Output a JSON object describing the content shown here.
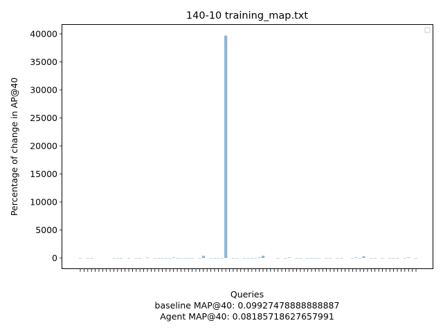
{
  "chart_data": {
    "type": "bar",
    "title": "140-10 training_map.txt",
    "xlabel": "Queries",
    "ylabel": "Percentage of change in AP@40",
    "footer": [
      "baseline MAP@40: 0.09927478888888887",
      "Agent MAP@40: 0.08185718627657991"
    ],
    "ylim": [
      -2000,
      41600
    ],
    "yticks": [
      0,
      5000,
      10000,
      15000,
      20000,
      25000,
      30000,
      35000,
      40000
    ],
    "ytick_labels": [
      "0",
      "5000",
      "10000",
      "15000",
      "20000",
      "25000",
      "30000",
      "35000",
      "40000"
    ],
    "grid": false,
    "legend": "top-right (empty)",
    "bar_color": "#8ab8dc",
    "values": [
      -60,
      0,
      -40,
      -30,
      0,
      0,
      0,
      0,
      0,
      -30,
      -50,
      -40,
      0,
      -60,
      0,
      -40,
      -30,
      0,
      60,
      0,
      -30,
      -40,
      -50,
      -40,
      -30,
      90,
      -20,
      -30,
      -40,
      -50,
      -30,
      0,
      -60,
      400,
      0,
      -40,
      -40,
      -30,
      -30,
      39700,
      0,
      -50,
      -40,
      0,
      -40,
      -50,
      -60,
      -20,
      100,
      400,
      0,
      0,
      0,
      -30,
      0,
      -40,
      100,
      0,
      -50,
      -40,
      0,
      -40,
      -60,
      -50,
      -30,
      0,
      -50,
      -60,
      0,
      -40,
      -40,
      0,
      0,
      -30,
      100,
      -20,
      300,
      0,
      -30,
      -40,
      0,
      -30,
      0,
      -50,
      -40,
      -40,
      0,
      -50,
      100,
      0,
      -60
    ]
  }
}
